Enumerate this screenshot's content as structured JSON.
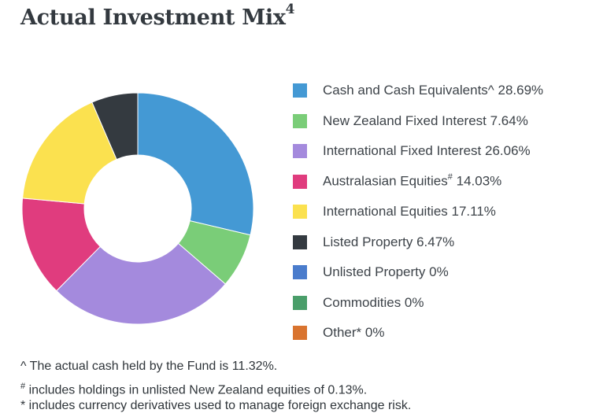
{
  "title": {
    "text": "Actual Investment Mix",
    "sup": "4"
  },
  "chart_data": {
    "type": "pie",
    "title": "Actual Investment Mix",
    "series": [
      {
        "name": "Cash and Cash Equivalents",
        "mark": "^",
        "value": 28.69,
        "label": "28.69%",
        "color": "#4499d4"
      },
      {
        "name": "New Zealand Fixed Interest",
        "mark": "",
        "value": 7.64,
        "label": "7.64%",
        "color": "#7acd78"
      },
      {
        "name": "International Fixed Interest",
        "mark": "",
        "value": 26.06,
        "label": "26.06%",
        "color": "#a48add"
      },
      {
        "name": "Australasian Equities",
        "mark": "#",
        "value": 14.03,
        "label": "14.03%",
        "color": "#e03c7e"
      },
      {
        "name": "International Equities",
        "mark": "",
        "value": 17.11,
        "label": "17.11%",
        "color": "#fbe14f"
      },
      {
        "name": "Listed Property",
        "mark": "",
        "value": 6.47,
        "label": "6.47%",
        "color": "#343a40"
      },
      {
        "name": "Unlisted Property",
        "mark": "",
        "value": 0,
        "label": "0%",
        "color": "#4a7ccc"
      },
      {
        "name": "Commodities",
        "mark": "",
        "value": 0,
        "label": "0%",
        "color": "#4a9e6a"
      },
      {
        "name": "Other",
        "mark": "*",
        "value": 0,
        "label": "0%",
        "color": "#d9742f"
      }
    ],
    "legend_position": "right",
    "hole": "donut"
  },
  "notes": [
    {
      "mark": "^",
      "text": " The actual cash held by the Fund is 11.32%."
    },
    {
      "mark": "#",
      "text": " includes holdings in unlisted New Zealand equities of 0.13%."
    },
    {
      "mark": "*",
      "text": " includes currency derivatives used to manage foreign exchange risk."
    }
  ]
}
